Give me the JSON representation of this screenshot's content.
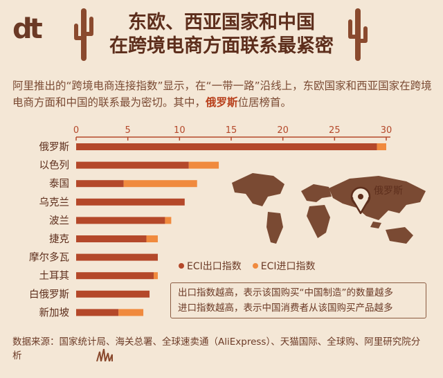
{
  "logo": "dt",
  "title_lines": [
    "东欧、西亚国家和中国",
    "在跨境电商方面联系最紧密"
  ],
  "intro": {
    "text_before": "阿里推出的“跨境电商连接指数”显示，在“一带一路”沿线上，东欧国家和西亚国家在跨境电商方面和中国的联系最为密切。其中，",
    "highlight": "俄罗斯",
    "text_after": "位居榜首。"
  },
  "map_pin_label": "俄罗斯",
  "legend": {
    "export_label": "ECI出口指数",
    "import_label": "ECI进口指数"
  },
  "notes": [
    "出口指数越高，表示该国购买“中国制造”的数量越多",
    "进口指数越高，表示中国消费者从该国购买产品越多"
  ],
  "source": "数据来源：国家统计局、海关总署、全球速卖通（AliExpress）、天猫国际、全球购、阿里研究院分析",
  "colors": {
    "export": "#b4482a",
    "import": "#f08a3e",
    "background": "#f4e7d6",
    "text": "#6b3a26",
    "map": "#7a4a33"
  },
  "chart_data": {
    "type": "bar",
    "orientation": "horizontal",
    "stacked": true,
    "categories": [
      "俄罗斯",
      "以色列",
      "泰国",
      "乌克兰",
      "波兰",
      "捷克",
      "摩尔多瓦",
      "土耳其",
      "白俄罗斯",
      "新加坡"
    ],
    "series": [
      {
        "name": "ECI出口指数",
        "values": [
          29.1,
          10.9,
          4.6,
          10.5,
          8.6,
          6.8,
          7.9,
          7.5,
          7.1,
          4.1
        ]
      },
      {
        "name": "ECI进口指数",
        "values": [
          0.9,
          2.9,
          7.1,
          0.0,
          0.6,
          1.1,
          0.0,
          0.4,
          0.0,
          2.4
        ]
      }
    ],
    "xticks": [
      "0",
      "5",
      "10",
      "15",
      "20",
      "25",
      "30"
    ],
    "xlim": [
      0,
      30
    ],
    "axis_position": "top",
    "legend_position": "bottom-right"
  }
}
